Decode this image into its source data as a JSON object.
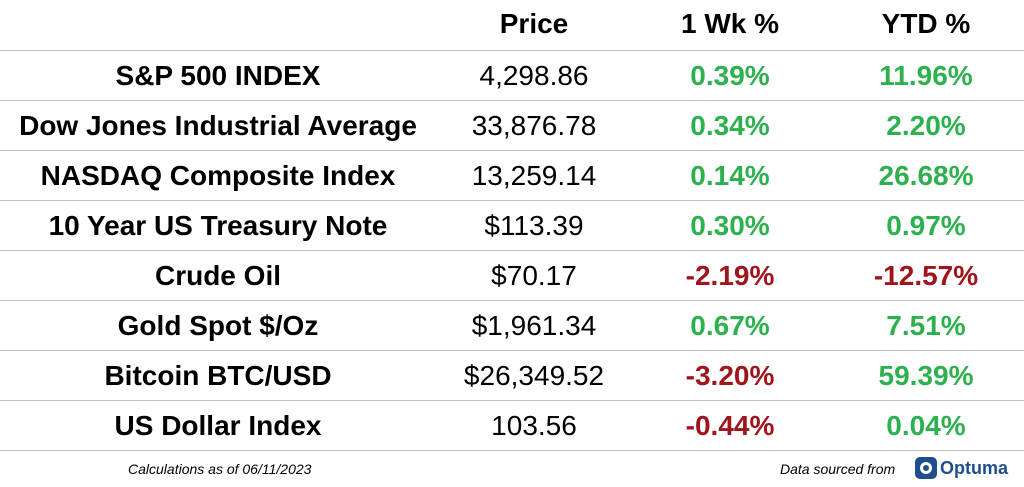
{
  "header": {
    "price": "Price",
    "week": "1 Wk %",
    "ytd": "YTD %"
  },
  "rows": [
    {
      "name": "S&P 500 INDEX",
      "price": "4,298.86",
      "week": "0.39%",
      "ytd": "11.96%"
    },
    {
      "name": "Dow Jones Industrial Average",
      "price": "33,876.78",
      "week": "0.34%",
      "ytd": "2.20%"
    },
    {
      "name": "NASDAQ Composite Index",
      "price": "13,259.14",
      "week": "0.14%",
      "ytd": "26.68%"
    },
    {
      "name": "10 Year US Treasury Note",
      "price": "$113.39",
      "week": "0.30%",
      "ytd": "0.97%"
    },
    {
      "name": "Crude Oil",
      "price": "$70.17",
      "week": "-2.19%",
      "ytd": "-12.57%"
    },
    {
      "name": "Gold Spot $/Oz",
      "price": "$1,961.34",
      "week": "0.67%",
      "ytd": "7.51%"
    },
    {
      "name": "Bitcoin BTC/USD",
      "price": "$26,349.52",
      "week": "-3.20%",
      "ytd": "59.39%"
    },
    {
      "name": "US Dollar Index",
      "price": "103.56",
      "week": "-0.44%",
      "ytd": "0.04%"
    }
  ],
  "footer": {
    "calc_note": "Calculations as of 06/11/2023",
    "source_note": "Data sourced from",
    "logo_text": "Optuma"
  },
  "colors": {
    "positive": "#2db14e",
    "negative": "#a0151b",
    "brand": "#1f4e8c"
  }
}
